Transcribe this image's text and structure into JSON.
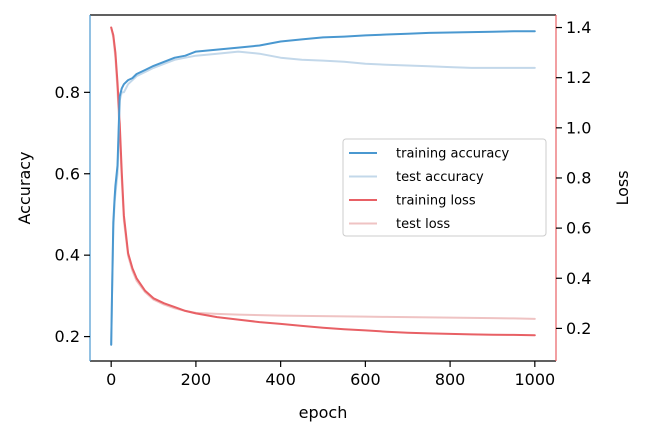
{
  "chart_data": {
    "type": "line",
    "title": "",
    "xlabel": "epoch",
    "ylabel_left": "Accuracy",
    "ylabel_right": "Loss",
    "xlim": [
      -50,
      1050
    ],
    "ylim_left": [
      0.14,
      0.99
    ],
    "ylim_right": [
      0.07,
      1.45
    ],
    "x_ticks": [
      0,
      200,
      400,
      600,
      800,
      1000
    ],
    "y_left_ticks": [
      0.2,
      0.4,
      0.6,
      0.8
    ],
    "y_right_ticks": [
      0.2,
      0.4,
      0.6,
      0.8,
      1.0,
      1.2,
      1.4
    ],
    "legend_position": "center-right",
    "grid": false,
    "series": [
      {
        "name": "training accuracy",
        "axis": "left",
        "color": "#4a98d0",
        "x": [
          0,
          2,
          5,
          8,
          10,
          15,
          20,
          25,
          30,
          40,
          50,
          60,
          80,
          100,
          125,
          150,
          175,
          200,
          250,
          300,
          350,
          400,
          450,
          500,
          550,
          600,
          650,
          700,
          750,
          800,
          850,
          900,
          950,
          1000
        ],
        "y": [
          0.18,
          0.3,
          0.48,
          0.54,
          0.57,
          0.62,
          0.79,
          0.81,
          0.82,
          0.83,
          0.835,
          0.845,
          0.855,
          0.865,
          0.875,
          0.885,
          0.89,
          0.9,
          0.905,
          0.91,
          0.915,
          0.925,
          0.93,
          0.935,
          0.937,
          0.94,
          0.942,
          0.944,
          0.946,
          0.947,
          0.948,
          0.949,
          0.95,
          0.95
        ]
      },
      {
        "name": "test accuracy",
        "axis": "left",
        "color": "#c3d8ea",
        "x": [
          0,
          2,
          5,
          8,
          10,
          15,
          20,
          25,
          30,
          40,
          50,
          60,
          80,
          100,
          125,
          150,
          175,
          200,
          250,
          300,
          350,
          400,
          450,
          500,
          550,
          600,
          650,
          700,
          750,
          800,
          850,
          900,
          950,
          1000
        ],
        "y": [
          0.18,
          0.3,
          0.46,
          0.53,
          0.55,
          0.6,
          0.78,
          0.8,
          0.8,
          0.82,
          0.83,
          0.84,
          0.85,
          0.86,
          0.87,
          0.88,
          0.885,
          0.89,
          0.895,
          0.9,
          0.895,
          0.885,
          0.88,
          0.878,
          0.875,
          0.87,
          0.868,
          0.866,
          0.864,
          0.862,
          0.86,
          0.86,
          0.86,
          0.86
        ]
      },
      {
        "name": "training loss",
        "axis": "right",
        "color": "#e86065",
        "x": [
          0,
          5,
          10,
          15,
          20,
          25,
          30,
          40,
          50,
          60,
          80,
          100,
          125,
          150,
          175,
          200,
          250,
          300,
          350,
          400,
          450,
          500,
          550,
          600,
          650,
          700,
          750,
          800,
          850,
          900,
          950,
          1000
        ],
        "y": [
          1.4,
          1.37,
          1.3,
          1.18,
          1.02,
          0.82,
          0.65,
          0.5,
          0.44,
          0.4,
          0.35,
          0.32,
          0.3,
          0.285,
          0.27,
          0.26,
          0.245,
          0.235,
          0.225,
          0.218,
          0.21,
          0.203,
          0.197,
          0.192,
          0.187,
          0.183,
          0.18,
          0.178,
          0.176,
          0.175,
          0.174,
          0.173
        ]
      },
      {
        "name": "test loss",
        "axis": "right",
        "color": "#efc3c3",
        "x": [
          0,
          5,
          10,
          15,
          20,
          25,
          30,
          40,
          50,
          60,
          80,
          100,
          125,
          150,
          175,
          200,
          250,
          300,
          350,
          400,
          450,
          500,
          550,
          600,
          650,
          700,
          750,
          800,
          850,
          900,
          950,
          1000
        ],
        "y": [
          1.4,
          1.36,
          1.28,
          1.15,
          0.98,
          0.79,
          0.63,
          0.49,
          0.43,
          0.39,
          0.345,
          0.315,
          0.295,
          0.28,
          0.27,
          0.262,
          0.258,
          0.255,
          0.253,
          0.251,
          0.25,
          0.249,
          0.248,
          0.247,
          0.246,
          0.245,
          0.244,
          0.243,
          0.242,
          0.241,
          0.24,
          0.238
        ]
      }
    ]
  }
}
